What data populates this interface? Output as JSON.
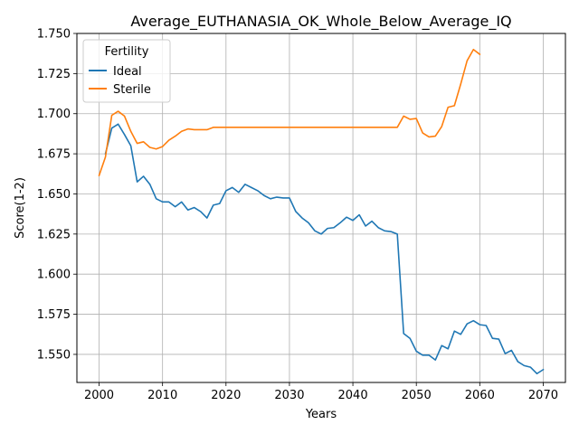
{
  "chart_data": {
    "type": "line",
    "title": "Average_EUTHANASIA_OK_Whole_Below_Average_IQ",
    "xlabel": "Years",
    "ylabel": "Score(1-2)",
    "xlim": [
      1996.5,
      2073.5
    ],
    "ylim": [
      1.5325,
      1.75
    ],
    "xticks": [
      2000,
      2010,
      2020,
      2030,
      2040,
      2050,
      2060,
      2070
    ],
    "xtick_labels": [
      "2000",
      "2010",
      "2020",
      "2030",
      "2040",
      "2050",
      "2060",
      "2070"
    ],
    "yticks": [
      1.55,
      1.575,
      1.6,
      1.625,
      1.65,
      1.675,
      1.7,
      1.725,
      1.75
    ],
    "ytick_labels": [
      "1.550",
      "1.575",
      "1.600",
      "1.625",
      "1.650",
      "1.675",
      "1.700",
      "1.725",
      "1.750"
    ],
    "grid": true,
    "legend": {
      "title": "Fertility",
      "position": "top-left"
    },
    "series": [
      {
        "name": "Ideal",
        "color": "#1f77b4",
        "x": [
          2001,
          2002,
          2003,
          2004,
          2005,
          2006,
          2007,
          2008,
          2009,
          2010,
          2011,
          2012,
          2013,
          2014,
          2015,
          2016,
          2017,
          2018,
          2019,
          2020,
          2021,
          2022,
          2023,
          2024,
          2025,
          2026,
          2027,
          2028,
          2029,
          2030,
          2031,
          2032,
          2033,
          2034,
          2035,
          2036,
          2037,
          2038,
          2039,
          2040,
          2041,
          2042,
          2043,
          2044,
          2045,
          2046,
          2047,
          2048,
          2049,
          2050,
          2051,
          2052,
          2053,
          2054,
          2055,
          2056,
          2057,
          2058,
          2059,
          2060,
          2061,
          2062,
          2063,
          2064,
          2065,
          2066,
          2067,
          2068,
          2069,
          2070
        ],
        "values": [
          1.675,
          1.691,
          1.6935,
          1.687,
          1.68,
          1.6575,
          1.661,
          1.656,
          1.647,
          1.645,
          1.645,
          1.642,
          1.645,
          1.64,
          1.6415,
          1.639,
          1.635,
          1.643,
          1.644,
          1.652,
          1.654,
          1.651,
          1.656,
          1.654,
          1.652,
          1.649,
          1.647,
          1.648,
          1.6475,
          1.6475,
          1.639,
          1.635,
          1.632,
          1.627,
          1.625,
          1.6285,
          1.629,
          1.632,
          1.6355,
          1.6335,
          1.637,
          1.63,
          1.633,
          1.629,
          1.627,
          1.6265,
          1.625,
          1.563,
          1.56,
          1.552,
          1.5495,
          1.5495,
          1.5465,
          1.5555,
          1.5535,
          1.5645,
          1.5625,
          1.569,
          1.571,
          1.5685,
          1.568,
          1.56,
          1.5595,
          1.5505,
          1.5525,
          1.5455,
          1.543,
          1.542,
          1.538,
          1.5405
        ]
      },
      {
        "name": "Sterile",
        "color": "#ff7f0e",
        "x": [
          2000,
          2001,
          2002,
          2003,
          2004,
          2005,
          2006,
          2007,
          2008,
          2009,
          2010,
          2011,
          2012,
          2013,
          2014,
          2015,
          2016,
          2017,
          2018,
          2019,
          2020,
          2021,
          2022,
          2023,
          2024,
          2025,
          2026,
          2027,
          2028,
          2029,
          2030,
          2031,
          2032,
          2033,
          2034,
          2035,
          2036,
          2037,
          2038,
          2039,
          2040,
          2041,
          2042,
          2043,
          2044,
          2045,
          2046,
          2047,
          2048,
          2049,
          2050,
          2051,
          2052,
          2053,
          2054,
          2055,
          2056,
          2057,
          2058,
          2059,
          2060
        ],
        "values": [
          1.6615,
          1.673,
          1.699,
          1.7015,
          1.6985,
          1.689,
          1.6815,
          1.6825,
          1.679,
          1.678,
          1.6795,
          1.6835,
          1.686,
          1.689,
          1.6905,
          1.69,
          1.69,
          1.69,
          1.6915,
          1.6915,
          1.6915,
          1.6915,
          1.6915,
          1.6915,
          1.6915,
          1.6915,
          1.6915,
          1.6915,
          1.6915,
          1.6915,
          1.6915,
          1.6915,
          1.6915,
          1.6915,
          1.6915,
          1.6915,
          1.6915,
          1.6915,
          1.6915,
          1.6915,
          1.6915,
          1.6915,
          1.6915,
          1.6915,
          1.6915,
          1.6915,
          1.6915,
          1.6915,
          1.6985,
          1.6965,
          1.697,
          1.688,
          1.6855,
          1.686,
          1.692,
          1.704,
          1.705,
          1.7185,
          1.733,
          1.74,
          1.737
        ]
      }
    ]
  }
}
